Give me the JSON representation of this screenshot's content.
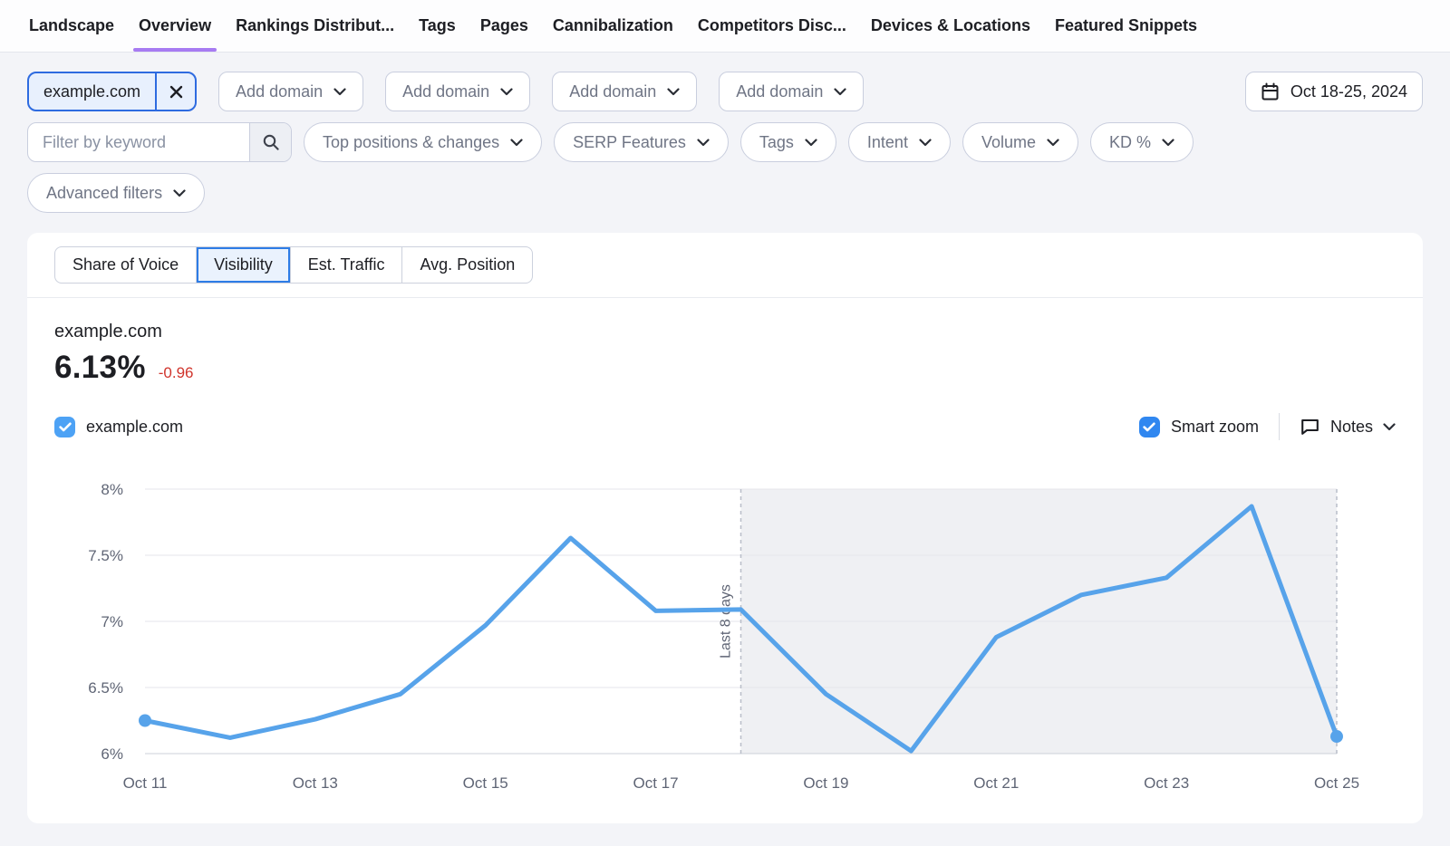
{
  "nav": {
    "tabs": [
      {
        "label": "Landscape",
        "active": false
      },
      {
        "label": "Overview",
        "active": true
      },
      {
        "label": "Rankings Distribut...",
        "active": false
      },
      {
        "label": "Tags",
        "active": false
      },
      {
        "label": "Pages",
        "active": false
      },
      {
        "label": "Cannibalization",
        "active": false
      },
      {
        "label": "Competitors Disc...",
        "active": false
      },
      {
        "label": "Devices & Locations",
        "active": false
      },
      {
        "label": "Featured Snippets",
        "active": false
      }
    ]
  },
  "domain_bar": {
    "selected_domain": "example.com",
    "add_buttons": [
      "Add domain",
      "Add domain",
      "Add domain",
      "Add domain"
    ],
    "date_range": "Oct 18-25, 2024"
  },
  "filters": {
    "keyword_placeholder": "Filter by keyword",
    "dropdowns": [
      "Top positions & changes",
      "SERP Features",
      "Tags",
      "Intent",
      "Volume",
      "KD %"
    ],
    "advanced_label": "Advanced filters"
  },
  "card": {
    "metric_tabs": [
      {
        "label": "Share of Voice",
        "selected": false
      },
      {
        "label": "Visibility",
        "selected": true
      },
      {
        "label": "Est. Traffic",
        "selected": false
      },
      {
        "label": "Avg. Position",
        "selected": false
      }
    ],
    "summary": {
      "domain": "example.com",
      "value": "6.13%",
      "change": "-0.96"
    },
    "legend": {
      "domain_label": "example.com",
      "smart_zoom_label": "Smart zoom",
      "notes_label": "Notes"
    }
  },
  "colors": {
    "accent": "#2d7ce6",
    "purple": "#a77bf2",
    "red": "#d0342c",
    "chip_border": "#2e6be0",
    "checkbox_blue": "#4da2f5",
    "smartzoom_blue": "#3087f0",
    "line_blue": "#57a3ea"
  },
  "chart_data": {
    "type": "line",
    "title": "Visibility",
    "x": [
      "Oct 11",
      "Oct 12",
      "Oct 13",
      "Oct 14",
      "Oct 15",
      "Oct 16",
      "Oct 17",
      "Oct 18",
      "Oct 19",
      "Oct 20",
      "Oct 21",
      "Oct 22",
      "Oct 23",
      "Oct 24",
      "Oct 25"
    ],
    "x_tick_labels": [
      "Oct 11",
      "Oct 13",
      "Oct 15",
      "Oct 17",
      "Oct 19",
      "Oct 21",
      "Oct 23",
      "Oct 25"
    ],
    "series": [
      {
        "name": "example.com",
        "color": "#57a3ea",
        "values": [
          6.25,
          6.12,
          6.26,
          6.45,
          6.97,
          7.63,
          7.08,
          7.09,
          6.45,
          6.02,
          6.88,
          7.2,
          7.33,
          7.87,
          6.13
        ]
      }
    ],
    "ylim": [
      6,
      8
    ],
    "y_ticks": [
      6,
      6.5,
      7,
      7.5,
      8
    ],
    "y_tick_labels": [
      "6%",
      "6.5%",
      "7%",
      "7.5%",
      "8%"
    ],
    "grid": true,
    "legend_position": "none",
    "annotation": {
      "label": "Last 8 days",
      "at_x": "Oct 18"
    },
    "shaded_region": {
      "from": "Oct 18",
      "to": "Oct 25",
      "fill": "#eff0f3"
    }
  }
}
